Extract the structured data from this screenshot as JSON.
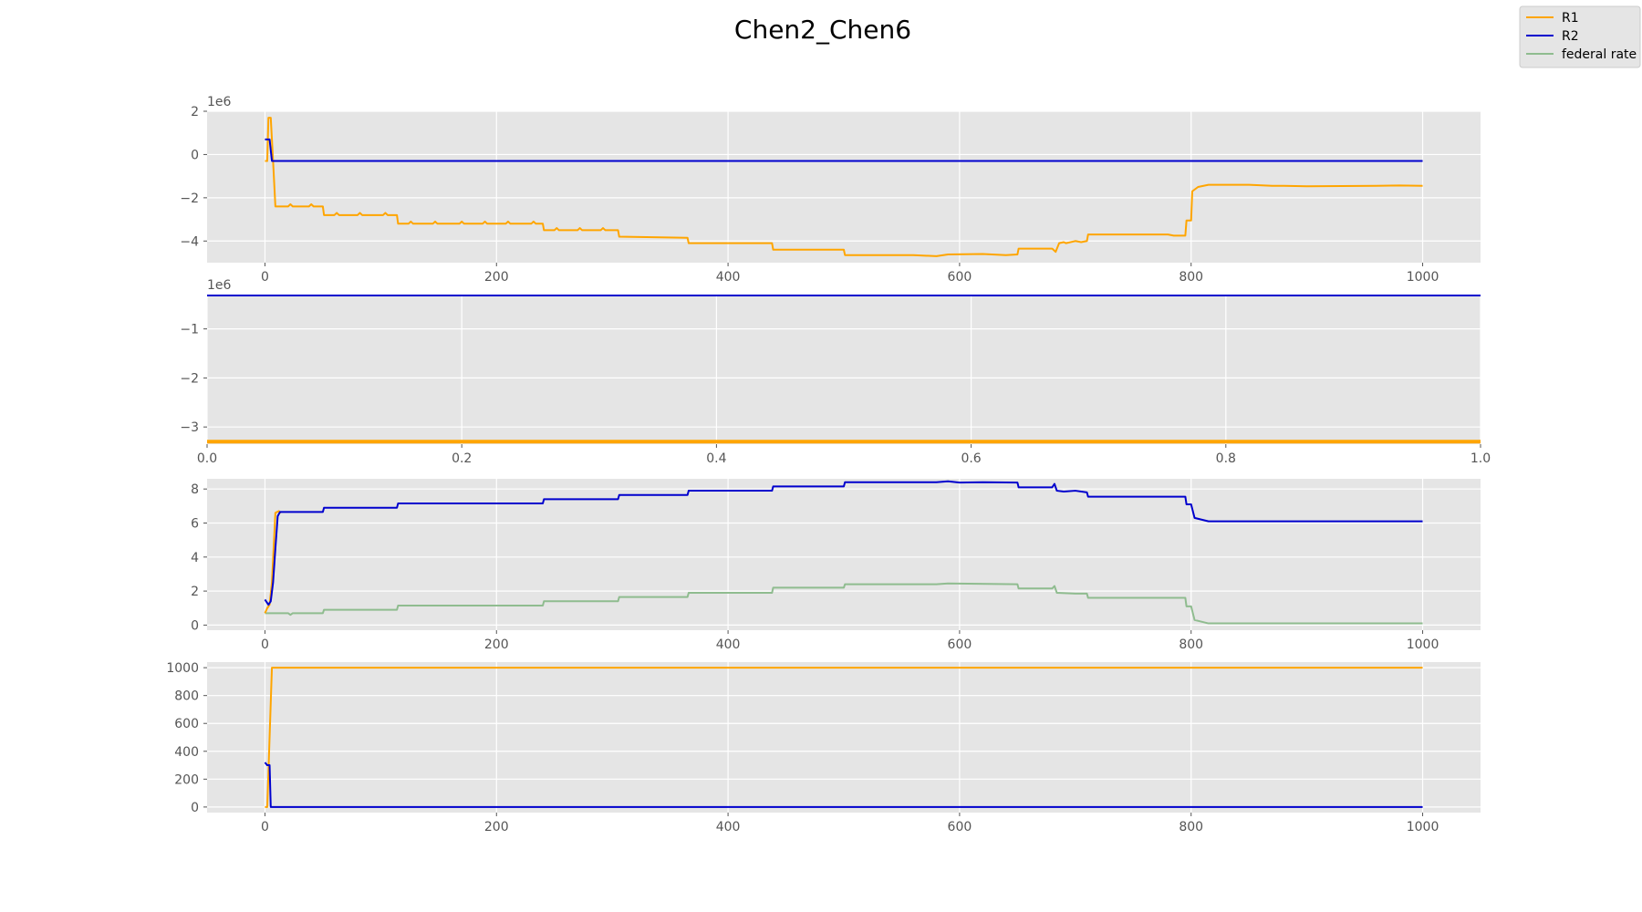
{
  "figure": {
    "title": "Chen2_Chen6"
  },
  "legend": {
    "placement": "top-right",
    "entries": [
      {
        "label": "R1",
        "color": "#ffa500"
      },
      {
        "label": "R2",
        "color": "#0000cd"
      },
      {
        "label": "federal rate",
        "color": "#8fbc8f"
      }
    ]
  },
  "chart_data": [
    {
      "type": "line",
      "xlim": [
        -50,
        1050
      ],
      "ylim": [
        -5,
        2
      ],
      "xticks": [
        0,
        200,
        400,
        600,
        800,
        1000
      ],
      "yticks": [
        2,
        0,
        -2,
        -4
      ],
      "offset_label": "1e6",
      "grid": true,
      "series": [
        {
          "name": "R1",
          "color": "#ffa500",
          "points": [
            [
              0,
              -0.3
            ],
            [
              2,
              -0.3
            ],
            [
              3,
              1.7
            ],
            [
              5,
              1.7
            ],
            [
              7,
              -0.3
            ],
            [
              9,
              -2.4
            ],
            [
              20,
              -2.4
            ],
            [
              22,
              -2.3
            ],
            [
              24,
              -2.4
            ],
            [
              38,
              -2.4
            ],
            [
              40,
              -2.3
            ],
            [
              42,
              -2.4
            ],
            [
              50,
              -2.4
            ],
            [
              51,
              -2.8
            ],
            [
              60,
              -2.8
            ],
            [
              62,
              -2.7
            ],
            [
              64,
              -2.8
            ],
            [
              80,
              -2.8
            ],
            [
              82,
              -2.7
            ],
            [
              84,
              -2.8
            ],
            [
              102,
              -2.8
            ],
            [
              104,
              -2.7
            ],
            [
              106,
              -2.8
            ],
            [
              114,
              -2.8
            ],
            [
              115,
              -3.2
            ],
            [
              124,
              -3.2
            ],
            [
              126,
              -3.1
            ],
            [
              128,
              -3.2
            ],
            [
              145,
              -3.2
            ],
            [
              147,
              -3.1
            ],
            [
              149,
              -3.2
            ],
            [
              168,
              -3.2
            ],
            [
              170,
              -3.1
            ],
            [
              172,
              -3.2
            ],
            [
              188,
              -3.2
            ],
            [
              190,
              -3.1
            ],
            [
              192,
              -3.2
            ],
            [
              208,
              -3.2
            ],
            [
              210,
              -3.1
            ],
            [
              212,
              -3.2
            ],
            [
              230,
              -3.2
            ],
            [
              232,
              -3.1
            ],
            [
              234,
              -3.2
            ],
            [
              240,
              -3.2
            ],
            [
              241,
              -3.5
            ],
            [
              250,
              -3.5
            ],
            [
              252,
              -3.4
            ],
            [
              254,
              -3.5
            ],
            [
              270,
              -3.5
            ],
            [
              272,
              -3.4
            ],
            [
              274,
              -3.5
            ],
            [
              290,
              -3.5
            ],
            [
              292,
              -3.4
            ],
            [
              294,
              -3.5
            ],
            [
              305,
              -3.5
            ],
            [
              306,
              -3.8
            ],
            [
              365,
              -3.85
            ],
            [
              366,
              -4.1
            ],
            [
              438,
              -4.1
            ],
            [
              439,
              -4.4
            ],
            [
              500,
              -4.4
            ],
            [
              501,
              -4.65
            ],
            [
              560,
              -4.65
            ],
            [
              580,
              -4.7
            ],
            [
              590,
              -4.62
            ],
            [
              620,
              -4.6
            ],
            [
              640,
              -4.65
            ],
            [
              650,
              -4.62
            ],
            [
              651,
              -4.35
            ],
            [
              680,
              -4.35
            ],
            [
              683,
              -4.5
            ],
            [
              686,
              -4.1
            ],
            [
              690,
              -4.05
            ],
            [
              692,
              -4.1
            ],
            [
              700,
              -4.0
            ],
            [
              705,
              -4.05
            ],
            [
              710,
              -4.0
            ],
            [
              711,
              -3.7
            ],
            [
              780,
              -3.7
            ],
            [
              785,
              -3.75
            ],
            [
              795,
              -3.75
            ],
            [
              796,
              -3.05
            ],
            [
              800,
              -3.05
            ],
            [
              801,
              -1.7
            ],
            [
              806,
              -1.5
            ],
            [
              815,
              -1.4
            ],
            [
              850,
              -1.4
            ],
            [
              870,
              -1.45
            ],
            [
              880,
              -1.45
            ],
            [
              900,
              -1.47
            ],
            [
              960,
              -1.45
            ],
            [
              980,
              -1.43
            ],
            [
              1000,
              -1.45
            ]
          ]
        },
        {
          "name": "R2",
          "color": "#0000cd",
          "points": [
            [
              0,
              0.7
            ],
            [
              4,
              0.7
            ],
            [
              6,
              -0.3
            ],
            [
              1000,
              -0.3
            ]
          ]
        }
      ]
    },
    {
      "type": "line",
      "xlim": [
        0,
        1
      ],
      "ylim": [
        -3.35,
        -0.3
      ],
      "xticks": [
        0.0,
        0.2,
        0.4,
        0.6,
        0.8,
        1.0
      ],
      "xtick_labels": [
        "0.0",
        "0.2",
        "0.4",
        "0.6",
        "0.8",
        "1.0"
      ],
      "yticks": [
        -1,
        -2,
        -3
      ],
      "offset_label": "1e6",
      "grid": true,
      "series": [
        {
          "name": "R2",
          "color": "#0000cd",
          "points": [
            [
              0,
              -0.3
            ],
            [
              1,
              -0.3
            ]
          ],
          "width": 4
        },
        {
          "name": "R1",
          "color": "#ffa500",
          "points": [
            [
              0,
              -3.3
            ],
            [
              1,
              -3.3
            ]
          ],
          "width": 4
        }
      ]
    },
    {
      "type": "line",
      "xlim": [
        -50,
        1050
      ],
      "ylim": [
        -0.3,
        8.6
      ],
      "xticks": [
        0,
        200,
        400,
        600,
        800,
        1000
      ],
      "yticks": [
        8,
        6,
        4,
        2,
        0
      ],
      "offset_label": "",
      "grid": true,
      "series": [
        {
          "name": "federal rate",
          "color": "#8fbc8f",
          "points": [
            [
              0,
              0.7
            ],
            [
              20,
              0.7
            ],
            [
              22,
              0.6
            ],
            [
              24,
              0.7
            ],
            [
              50,
              0.7
            ],
            [
              51,
              0.9
            ],
            [
              114,
              0.9
            ],
            [
              115,
              1.15
            ],
            [
              240,
              1.15
            ],
            [
              241,
              1.4
            ],
            [
              305,
              1.4
            ],
            [
              306,
              1.65
            ],
            [
              365,
              1.65
            ],
            [
              366,
              1.9
            ],
            [
              438,
              1.9
            ],
            [
              439,
              2.2
            ],
            [
              500,
              2.2
            ],
            [
              501,
              2.4
            ],
            [
              580,
              2.4
            ],
            [
              590,
              2.45
            ],
            [
              650,
              2.4
            ],
            [
              651,
              2.15
            ],
            [
              680,
              2.15
            ],
            [
              682,
              2.3
            ],
            [
              684,
              1.9
            ],
            [
              700,
              1.85
            ],
            [
              710,
              1.85
            ],
            [
              711,
              1.6
            ],
            [
              795,
              1.6
            ],
            [
              796,
              1.1
            ],
            [
              800,
              1.1
            ],
            [
              803,
              0.3
            ],
            [
              815,
              0.1
            ],
            [
              880,
              0.1
            ],
            [
              1000,
              0.1
            ]
          ]
        },
        {
          "name": "R1",
          "color": "#ffa500",
          "points": [
            [
              0,
              0.7
            ],
            [
              2,
              1.0
            ],
            [
              4,
              1.2
            ],
            [
              6,
              2.5
            ],
            [
              9,
              6.6
            ],
            [
              12,
              6.7
            ],
            [
              14,
              6.6
            ]
          ]
        },
        {
          "name": "R2",
          "color": "#0000cd",
          "points": [
            [
              0,
              1.5
            ],
            [
              3,
              1.2
            ],
            [
              5,
              1.4
            ],
            [
              7,
              2.5
            ],
            [
              9,
              4.5
            ],
            [
              11,
              6.4
            ],
            [
              13,
              6.65
            ],
            [
              50,
              6.65
            ],
            [
              51,
              6.9
            ],
            [
              114,
              6.9
            ],
            [
              115,
              7.15
            ],
            [
              240,
              7.15
            ],
            [
              241,
              7.4
            ],
            [
              305,
              7.4
            ],
            [
              306,
              7.65
            ],
            [
              365,
              7.65
            ],
            [
              366,
              7.9
            ],
            [
              438,
              7.9
            ],
            [
              439,
              8.15
            ],
            [
              500,
              8.15
            ],
            [
              501,
              8.4
            ],
            [
              580,
              8.4
            ],
            [
              590,
              8.45
            ],
            [
              600,
              8.38
            ],
            [
              620,
              8.4
            ],
            [
              650,
              8.38
            ],
            [
              651,
              8.1
            ],
            [
              680,
              8.1
            ],
            [
              682,
              8.3
            ],
            [
              684,
              7.9
            ],
            [
              690,
              7.85
            ],
            [
              700,
              7.9
            ],
            [
              710,
              7.8
            ],
            [
              711,
              7.55
            ],
            [
              795,
              7.55
            ],
            [
              796,
              7.1
            ],
            [
              800,
              7.1
            ],
            [
              803,
              6.3
            ],
            [
              815,
              6.1
            ],
            [
              880,
              6.1
            ],
            [
              1000,
              6.1
            ]
          ]
        }
      ]
    },
    {
      "type": "line",
      "xlim": [
        -50,
        1050
      ],
      "ylim": [
        -40,
        1040
      ],
      "xticks": [
        0,
        200,
        400,
        600,
        800,
        1000
      ],
      "yticks": [
        1000,
        800,
        600,
        400,
        200,
        0
      ],
      "offset_label": "",
      "grid": true,
      "series": [
        {
          "name": "R1",
          "color": "#ffa500",
          "points": [
            [
              0,
              0
            ],
            [
              2,
              0
            ],
            [
              4,
              500
            ],
            [
              6,
              1000
            ],
            [
              1000,
              1000
            ]
          ]
        },
        {
          "name": "R2",
          "color": "#0000cd",
          "points": [
            [
              0,
              320
            ],
            [
              2,
              300
            ],
            [
              4,
              300
            ],
            [
              5,
              0
            ],
            [
              1000,
              0
            ]
          ]
        }
      ]
    }
  ]
}
